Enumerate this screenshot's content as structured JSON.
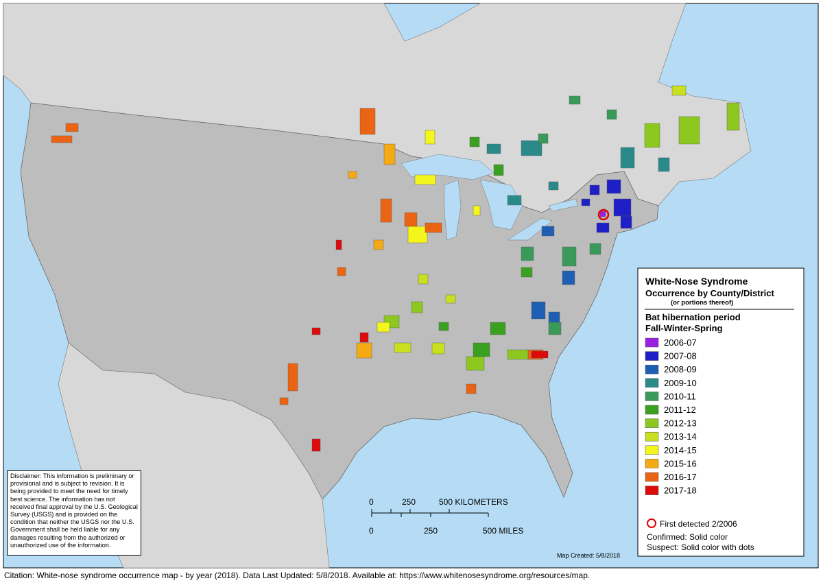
{
  "legend": {
    "title": "White-Nose Syndrome",
    "subtitle": "Occurrence by County/District",
    "note": "(or portions thereof)",
    "period_title": "Bat hibernation period",
    "period_subtitle": "Fall-Winter-Spring",
    "entries": [
      {
        "label": "2006-07",
        "color": "#9b1fe0"
      },
      {
        "label": "2007-08",
        "color": "#1f1fc8"
      },
      {
        "label": "2008-09",
        "color": "#1e5fb4"
      },
      {
        "label": "2009-10",
        "color": "#2a8a8a"
      },
      {
        "label": "2010-11",
        "color": "#3a9a5a"
      },
      {
        "label": "2011-12",
        "color": "#3aa020"
      },
      {
        "label": "2012-13",
        "color": "#8cc820"
      },
      {
        "label": "2013-14",
        "color": "#c8e020"
      },
      {
        "label": "2014-15",
        "color": "#f5f51e"
      },
      {
        "label": "2015-16",
        "color": "#f5aa14"
      },
      {
        "label": "2016-17",
        "color": "#eb6414"
      },
      {
        "label": "2017-18",
        "color": "#dc0a0a"
      }
    ],
    "first_detected": "First detected 2/2006",
    "confirmed": "Confirmed:  Solid color",
    "suspect": "Suspect:  Solid color with dots"
  },
  "scale_bar": {
    "km_labels": [
      "0",
      "250",
      "500 KILOMETERS"
    ],
    "mile_labels": [
      "0",
      "250",
      "500 MILES"
    ]
  },
  "disclaimer": "Disclaimer: This information is preliminary or provisional and is subject to revision. It is being provided to meet the need for timely best science. The information has not received final approval by the U.S. Geological Survey (USGS) and is provided on the condition that neither the USGS nor the U.S. Government shall be held liable for any damages resulting from the authorized or unauthorized use of the information.",
  "map_created": "Map Created:  5/8/2018",
  "citation": "Citation:  White-nose syndrome occurrence map - by year (2018).  Data Last Updated: 5/8/2018. Available at: https://www.whitenosesyndrome.org/resources/map."
}
